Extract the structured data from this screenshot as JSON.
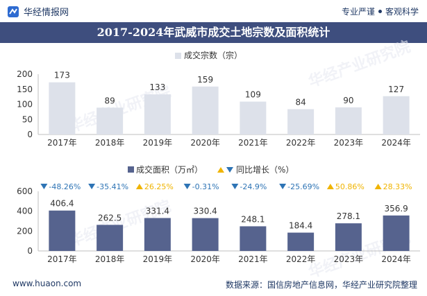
{
  "header": {
    "brand": "华经情报网",
    "slogan_left": "专业严谨",
    "slogan_right": "客观科学"
  },
  "title": "2017-2024年武威市成交土地宗数及面积统计",
  "watermark_text": "华经产业研究院",
  "footer": {
    "url": "www.huaon.com",
    "source": "数据来源：国信房地产信息网，华经产业研究院整理"
  },
  "colors": {
    "title_bg": "#3e4e7e",
    "count_bar": "#dde1ea",
    "area_bar": "#56638e",
    "down": "#2e74b5",
    "up": "#f0b400"
  },
  "chart_data": [
    {
      "type": "bar",
      "categories": [
        "2017年",
        "2018年",
        "2019年",
        "2020年",
        "2021年",
        "2022年",
        "2023年",
        "2024年"
      ],
      "series": [
        {
          "name": "成交宗数（宗）",
          "values": [
            173,
            89,
            133,
            159,
            109,
            84,
            90,
            127
          ]
        }
      ],
      "ylim": [
        0,
        200
      ],
      "yticks": [
        0,
        50,
        100,
        150,
        200
      ],
      "legend": "top-center",
      "grid": false
    },
    {
      "type": "bar",
      "categories": [
        "2017年",
        "2018年",
        "2019年",
        "2020年",
        "2021年",
        "2022年",
        "2023年",
        "2024年"
      ],
      "series": [
        {
          "name": "成交面积（万㎡）",
          "values": [
            406.4,
            262.5,
            331.4,
            330.4,
            248.1,
            184.4,
            278.1,
            356.9
          ]
        },
        {
          "name": "同比增长（%）",
          "values": [
            -48.26,
            -35.41,
            26.25,
            -0.31,
            -24.9,
            -25.69,
            50.86,
            28.33
          ]
        }
      ],
      "ylim": [
        0,
        600
      ],
      "yticks": [
        0,
        200,
        400,
        600
      ],
      "legend": "top-center",
      "grid": false
    }
  ]
}
